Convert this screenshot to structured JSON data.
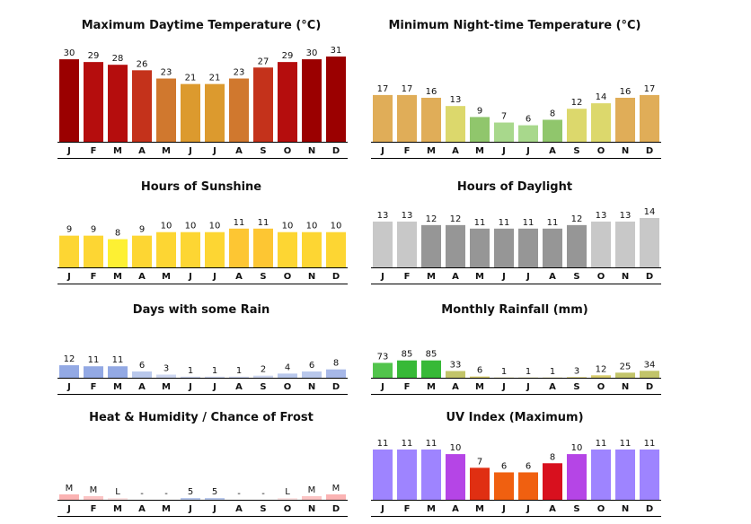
{
  "chart_data": [
    {
      "type": "bar",
      "title": "Maximum Daytime Temperature (°C)",
      "categories": [
        "J",
        "F",
        "M",
        "A",
        "M",
        "J",
        "J",
        "A",
        "S",
        "O",
        "N",
        "D"
      ],
      "values": [
        30,
        29,
        28,
        26,
        23,
        21,
        21,
        23,
        27,
        29,
        30,
        31
      ],
      "labels": [
        "30",
        "29",
        "28",
        "26",
        "23",
        "21",
        "21",
        "23",
        "27",
        "29",
        "30",
        "31"
      ],
      "colors": [
        "#9b0000",
        "#b50d0d",
        "#b50d0d",
        "#c4321b",
        "#d0782e",
        "#dc9a2e",
        "#dc9a2e",
        "#d0782e",
        "#c4321b",
        "#b50d0d",
        "#9b0000",
        "#9b0000"
      ],
      "ylim": [
        0,
        31
      ]
    },
    {
      "type": "bar",
      "title": "Minimum Night-time Temperature (°C)",
      "categories": [
        "J",
        "F",
        "M",
        "A",
        "M",
        "J",
        "J",
        "A",
        "S",
        "O",
        "N",
        "D"
      ],
      "values": [
        17,
        17,
        16,
        13,
        9,
        7,
        6,
        8,
        12,
        14,
        16,
        17
      ],
      "labels": [
        "17",
        "17",
        "16",
        "13",
        "9",
        "7",
        "6",
        "8",
        "12",
        "14",
        "16",
        "17"
      ],
      "colors": [
        "#e0ad58",
        "#e0ad58",
        "#e0ad58",
        "#dcd86c",
        "#90c66c",
        "#a8d88c",
        "#a8d88c",
        "#90c66c",
        "#dcd86c",
        "#dcd86c",
        "#e0ad58",
        "#e0ad58"
      ],
      "ylim": [
        0,
        31
      ]
    },
    {
      "type": "bar",
      "title": "Hours of Sunshine",
      "categories": [
        "J",
        "F",
        "M",
        "A",
        "M",
        "J",
        "J",
        "A",
        "S",
        "O",
        "N",
        "D"
      ],
      "values": [
        9,
        9,
        8,
        9,
        10,
        10,
        10,
        11,
        11,
        10,
        10,
        10
      ],
      "labels": [
        "9",
        "9",
        "8",
        "9",
        "10",
        "10",
        "10",
        "11",
        "11",
        "10",
        "10",
        "10"
      ],
      "colors": [
        "#fdd633",
        "#fdd633",
        "#fdf033",
        "#fdd633",
        "#fdd633",
        "#fdd633",
        "#fdd633",
        "#fdc633",
        "#fdc633",
        "#fdd633",
        "#fdd633",
        "#fdd633"
      ],
      "ylim": [
        0,
        14
      ]
    },
    {
      "type": "bar",
      "title": "Hours of Daylight",
      "categories": [
        "J",
        "F",
        "M",
        "A",
        "M",
        "J",
        "J",
        "A",
        "S",
        "O",
        "N",
        "D"
      ],
      "values": [
        13,
        13,
        12,
        12,
        11,
        11,
        11,
        11,
        12,
        13,
        13,
        14
      ],
      "labels": [
        "13",
        "13",
        "12",
        "12",
        "11",
        "11",
        "11",
        "11",
        "12",
        "13",
        "13",
        "14"
      ],
      "colors": [
        "#c8c8c8",
        "#c8c8c8",
        "#969696",
        "#969696",
        "#969696",
        "#969696",
        "#969696",
        "#969696",
        "#969696",
        "#c8c8c8",
        "#c8c8c8",
        "#c8c8c8"
      ],
      "ylim": [
        0,
        14
      ]
    },
    {
      "type": "bar",
      "title": "Days with some Rain",
      "categories": [
        "J",
        "F",
        "M",
        "A",
        "M",
        "J",
        "J",
        "A",
        "S",
        "O",
        "N",
        "D"
      ],
      "values": [
        12,
        11,
        11,
        6,
        3,
        1,
        1,
        1,
        2,
        4,
        6,
        8
      ],
      "labels": [
        "12",
        "11",
        "11",
        "6",
        "3",
        "1",
        "1",
        "1",
        "2",
        "4",
        "6",
        "8"
      ],
      "colors": [
        "#93a9e4",
        "#93a9e4",
        "#93a9e4",
        "#b9c8ec",
        "#cdd6f0",
        "#cdd6f0",
        "#cdd6f0",
        "#cdd6f0",
        "#cdd6f0",
        "#b9c8ec",
        "#b9c8ec",
        "#a7b8e8"
      ],
      "ylim": [
        0,
        31
      ]
    },
    {
      "type": "bar",
      "title": "Monthly Rainfall (mm)",
      "categories": [
        "J",
        "F",
        "M",
        "A",
        "M",
        "J",
        "J",
        "A",
        "S",
        "O",
        "N",
        "D"
      ],
      "values": [
        73,
        85,
        85,
        33,
        6,
        1,
        1,
        1,
        3,
        12,
        25,
        34
      ],
      "labels": [
        "73",
        "85",
        "85",
        "33",
        "6",
        "1",
        "1",
        "1",
        "3",
        "12",
        "25",
        "34"
      ],
      "colors": [
        "#52c44c",
        "#37b937",
        "#37b937",
        "#c2c46a",
        "#d8cc6c",
        "#d8cc6c",
        "#d8cc6c",
        "#d8cc6c",
        "#d8cc6c",
        "#d8cc6c",
        "#c2c46a",
        "#c2c46a"
      ],
      "ylim": [
        0,
        370
      ]
    },
    {
      "type": "bar",
      "title": "Heat & Humidity / Chance of Frost",
      "categories": [
        "J",
        "F",
        "M",
        "A",
        "M",
        "J",
        "J",
        "A",
        "S",
        "O",
        "N",
        "D"
      ],
      "values": [
        3,
        2,
        1,
        0,
        0,
        1,
        1,
        0,
        0,
        1,
        2,
        3
      ],
      "labels": [
        "M",
        "M",
        "L",
        "-",
        "-",
        "5",
        "5",
        "-",
        "-",
        "L",
        "M",
        "M"
      ],
      "colors": [
        "#fbb3b3",
        "#fbc4c4",
        "#fde6e6",
        "#ffffff",
        "#ffffff",
        "#b9c8ec",
        "#b9c8ec",
        "#ffffff",
        "#ffffff",
        "#fde6e6",
        "#fbc4c4",
        "#fbb3b3"
      ],
      "ylim": [
        0,
        12
      ]
    },
    {
      "type": "bar",
      "title": "UV Index (Maximum)",
      "categories": [
        "J",
        "F",
        "M",
        "A",
        "M",
        "J",
        "J",
        "A",
        "S",
        "O",
        "N",
        "D"
      ],
      "values": [
        11,
        11,
        11,
        10,
        7,
        6,
        6,
        8,
        10,
        11,
        11,
        11
      ],
      "labels": [
        "11",
        "11",
        "11",
        "10",
        "7",
        "6",
        "6",
        "8",
        "10",
        "11",
        "11",
        "11"
      ],
      "colors": [
        "#9e84ff",
        "#9e84ff",
        "#9e84ff",
        "#b545e6",
        "#e02f12",
        "#f06010",
        "#f06010",
        "#d8101e",
        "#b545e6",
        "#9e84ff",
        "#9e84ff",
        "#9e84ff"
      ],
      "ylim": [
        0,
        11
      ]
    }
  ]
}
